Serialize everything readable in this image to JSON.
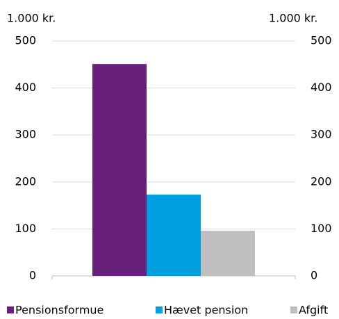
{
  "chart_data": {
    "type": "bar",
    "y_label": "1.000 kr.",
    "y2_label": "1.000 kr.",
    "categories": [
      null
    ],
    "series": [
      {
        "name": "Pensionsformue",
        "color": "#68217a",
        "values": [
          451
        ]
      },
      {
        "name": "Hævet pension",
        "color": "#009fe0",
        "values": [
          173
        ]
      },
      {
        "name": "Afgift",
        "color": "#bfbfbf",
        "values": [
          96
        ]
      }
    ],
    "ylim": [
      0,
      500
    ],
    "yticks": [
      0,
      100,
      200,
      300,
      400,
      500
    ],
    "y2lim": [
      0,
      500
    ],
    "y2ticks": [
      0,
      100,
      200,
      300,
      400,
      500
    ],
    "grid": true,
    "legend": "bottom"
  }
}
